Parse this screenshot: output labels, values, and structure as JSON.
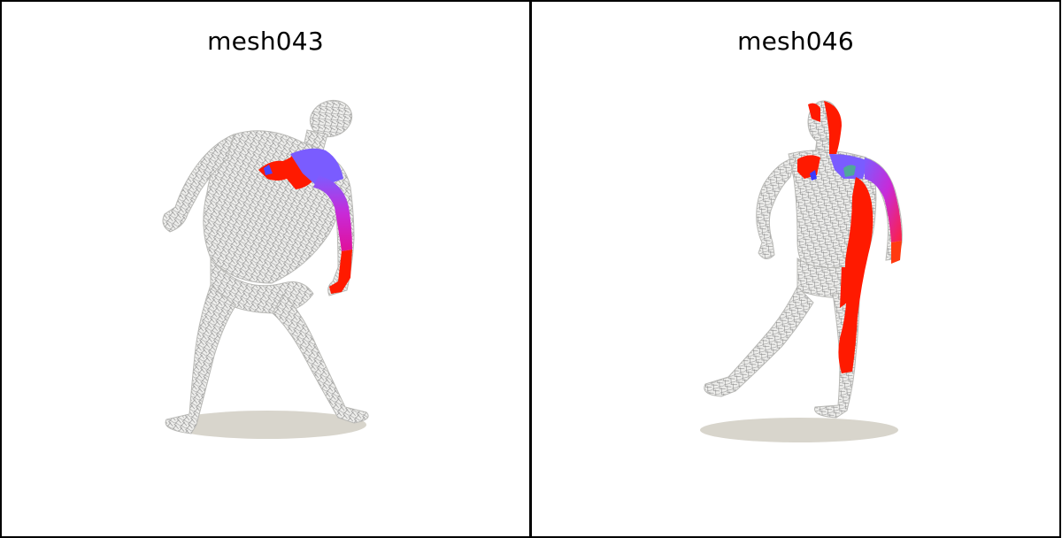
{
  "panels": [
    {
      "title": "mesh043"
    },
    {
      "title": "mesh046"
    }
  ],
  "colors": {
    "background": "#ffffff",
    "border": "#000000",
    "mesh_base": "#e9e9e7",
    "mesh_wire": "#8a8a8a",
    "shadow": "#d8d5cc",
    "highlight_red": "#ff1a00",
    "highlight_blue": "#6a5cff",
    "highlight_magenta": "#d21fd8"
  }
}
